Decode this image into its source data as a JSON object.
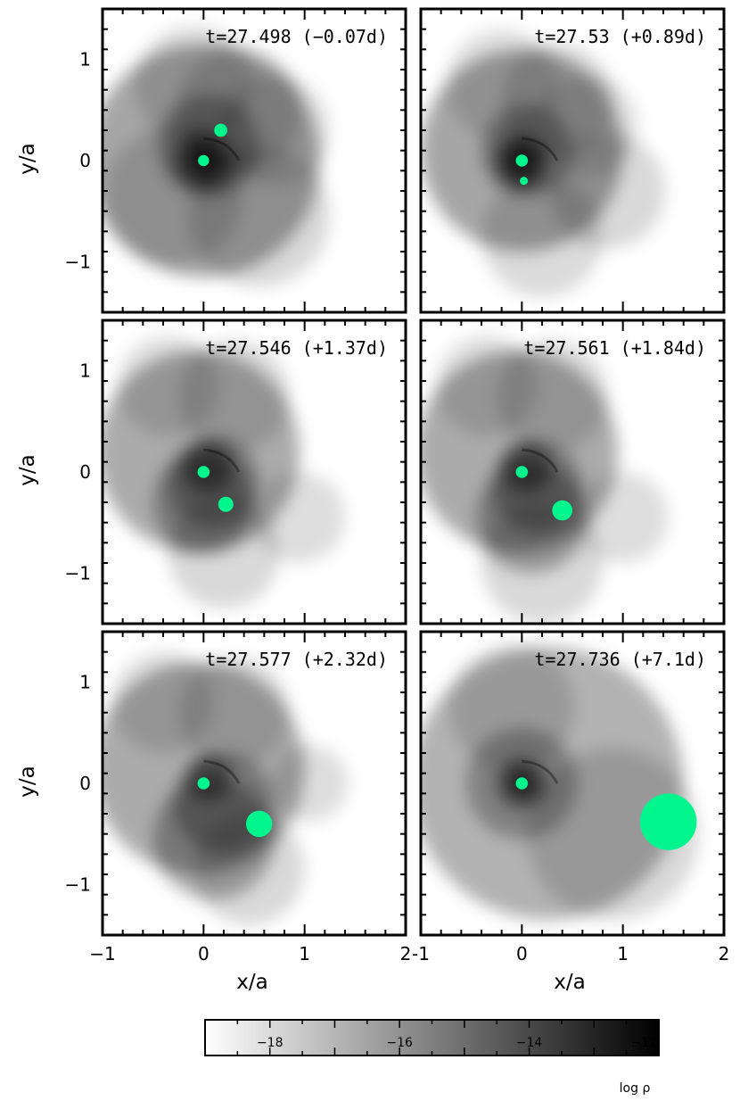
{
  "chart_data": {
    "type": "heatmap",
    "colors": {
      "star": "#00f58c",
      "frame": "#000000",
      "background": "#ffffff"
    },
    "axes": {
      "xlabel": "x/a",
      "ylabel": "y/a",
      "xlim": [
        -1,
        2
      ],
      "ylim": [
        -1.5,
        1.5
      ],
      "x_ticks": [
        {
          "value": -1,
          "label": "−1"
        },
        {
          "value": 0,
          "label": "0"
        },
        {
          "value": 1,
          "label": "1"
        },
        {
          "value": 2,
          "label": "2"
        }
      ],
      "x_ticks_right_column": [
        {
          "value": -1,
          "label": "-1"
        },
        {
          "value": 0,
          "label": "0"
        },
        {
          "value": 1,
          "label": "1"
        },
        {
          "value": 2,
          "label": "2"
        }
      ],
      "y_ticks": [
        {
          "value": 1,
          "label": "1"
        },
        {
          "value": 0,
          "label": "0"
        },
        {
          "value": -1,
          "label": "−1"
        }
      ]
    },
    "panels": [
      {
        "title": "t=27.498 (−0.07d)",
        "blobs": [
          [
            0.0,
            0.0,
            1.15,
            0.35
          ],
          [
            0.35,
            0.5,
            0.62,
            0.16
          ],
          [
            -0.1,
            0.75,
            0.58,
            0.14
          ],
          [
            -0.3,
            -0.35,
            0.68,
            0.15
          ],
          [
            0.55,
            -0.55,
            0.7,
            0.15
          ],
          [
            0.7,
            0.3,
            0.55,
            0.12
          ],
          [
            0.05,
            0.15,
            0.5,
            0.3
          ],
          [
            0.0,
            0.0,
            0.3,
            0.45
          ],
          [
            0.0,
            0.0,
            0.16,
            0.6
          ]
        ],
        "stars": [
          {
            "x": 0.0,
            "y": 0.0,
            "r": 0.055
          },
          {
            "x": 0.17,
            "y": 0.3,
            "r": 0.065
          }
        ]
      },
      {
        "title": "t=27.53 (+0.89d)",
        "blobs": [
          [
            0.0,
            0.1,
            1.0,
            0.35
          ],
          [
            0.35,
            0.6,
            0.55,
            0.15
          ],
          [
            -0.2,
            0.75,
            0.55,
            0.13
          ],
          [
            0.85,
            -0.3,
            0.57,
            0.15
          ],
          [
            0.2,
            -0.75,
            0.6,
            0.14
          ],
          [
            0.65,
            0.35,
            0.5,
            0.12
          ],
          [
            0.05,
            0.1,
            0.45,
            0.3
          ],
          [
            0.0,
            0.0,
            0.28,
            0.45
          ],
          [
            0.0,
            0.0,
            0.18,
            0.6
          ]
        ],
        "stars": [
          {
            "x": 0.0,
            "y": 0.0,
            "r": 0.06
          },
          {
            "x": 0.02,
            "y": -0.2,
            "r": 0.04
          }
        ]
      },
      {
        "title": "t=27.546 (+1.37d)",
        "blobs": [
          [
            -0.05,
            0.2,
            1.0,
            0.33
          ],
          [
            0.3,
            0.75,
            0.55,
            0.14
          ],
          [
            -0.35,
            0.85,
            0.5,
            0.13
          ],
          [
            0.95,
            -0.45,
            0.45,
            0.13
          ],
          [
            0.2,
            -0.8,
            0.55,
            0.15
          ],
          [
            0.0,
            -0.3,
            0.5,
            0.3
          ],
          [
            0.1,
            -0.1,
            0.45,
            0.3
          ],
          [
            0.05,
            0.05,
            0.25,
            0.45
          ]
        ],
        "stars": [
          {
            "x": 0.0,
            "y": 0.0,
            "r": 0.06
          },
          {
            "x": 0.22,
            "y": -0.32,
            "r": 0.075
          }
        ]
      },
      {
        "title": "t=27.561 (+1.84d)",
        "blobs": [
          [
            -0.05,
            0.2,
            1.0,
            0.33
          ],
          [
            0.3,
            0.75,
            0.55,
            0.14
          ],
          [
            -0.35,
            0.85,
            0.5,
            0.13
          ],
          [
            1.0,
            -0.45,
            0.45,
            0.13
          ],
          [
            0.2,
            -0.9,
            0.6,
            0.15
          ],
          [
            0.1,
            -0.45,
            0.55,
            0.3
          ],
          [
            0.15,
            -0.15,
            0.45,
            0.3
          ],
          [
            0.05,
            0.05,
            0.25,
            0.45
          ]
        ],
        "stars": [
          {
            "x": 0.0,
            "y": 0.0,
            "r": 0.06
          },
          {
            "x": 0.4,
            "y": -0.38,
            "r": 0.1
          }
        ]
      },
      {
        "title": "t=27.577 (+2.32d)",
        "blobs": [
          [
            -0.05,
            0.15,
            1.05,
            0.33
          ],
          [
            0.3,
            0.7,
            0.55,
            0.14
          ],
          [
            -0.4,
            0.8,
            0.5,
            0.13
          ],
          [
            1.05,
            0.0,
            0.38,
            0.13
          ],
          [
            0.45,
            -0.85,
            0.55,
            0.15
          ],
          [
            0.1,
            -0.55,
            0.6,
            0.3
          ],
          [
            0.2,
            -0.2,
            0.5,
            0.3
          ],
          [
            0.05,
            0.05,
            0.22,
            0.45
          ]
        ],
        "stars": [
          {
            "x": 0.0,
            "y": 0.0,
            "r": 0.06
          },
          {
            "x": 0.55,
            "y": -0.4,
            "r": 0.13
          }
        ]
      },
      {
        "title": "t=27.736 (+7.1d)",
        "blobs": [
          [
            0.25,
            0.0,
            1.35,
            0.3
          ],
          [
            0.9,
            -0.5,
            0.85,
            0.15
          ],
          [
            -0.1,
            0.75,
            0.62,
            0.14
          ],
          [
            0.0,
            0.0,
            0.55,
            0.28
          ],
          [
            0.0,
            0.0,
            0.25,
            0.45
          ],
          [
            0.0,
            0.0,
            0.12,
            0.6
          ]
        ],
        "stars": [
          {
            "x": 0.0,
            "y": 0.0,
            "r": 0.06
          },
          {
            "x": 1.45,
            "y": -0.38,
            "r": 0.28
          }
        ]
      }
    ],
    "colorbar": {
      "label": "log ρ",
      "range": [
        -19,
        -12
      ],
      "ticks": [
        {
          "value": -18,
          "label": "−18"
        },
        {
          "value": -16,
          "label": "−16"
        },
        {
          "value": -14,
          "label": "−14"
        },
        {
          "value": -12,
          "label": "−12"
        }
      ]
    }
  }
}
